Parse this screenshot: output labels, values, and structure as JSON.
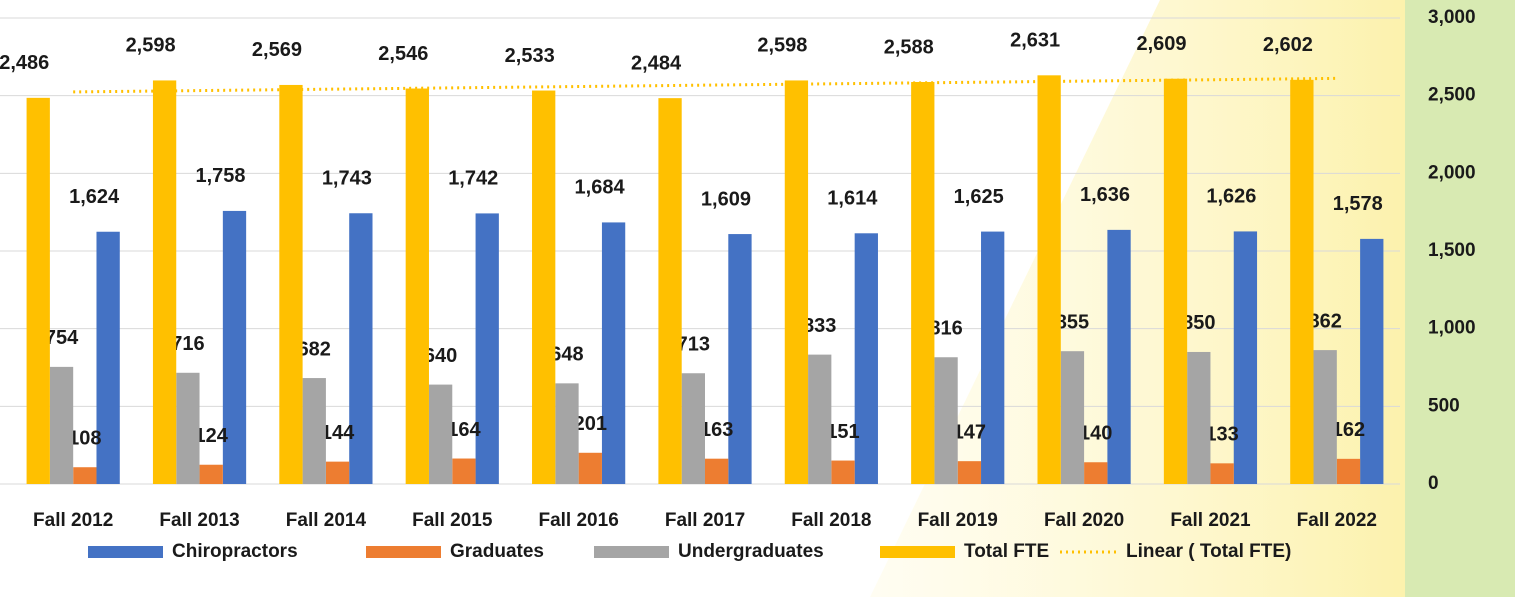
{
  "chart_data": {
    "type": "bar",
    "categories": [
      "Fall 2012",
      "Fall 2013",
      "Fall 2014",
      "Fall 2015",
      "Fall 2016",
      "Fall 2017",
      "Fall 2018",
      "Fall 2019",
      "Fall 2020",
      "Fall 2021",
      "Fall 2022"
    ],
    "series": [
      {
        "name": "Chiropractors",
        "color": "#4472c4",
        "values": [
          1624,
          1758,
          1743,
          1742,
          1684,
          1609,
          1614,
          1625,
          1636,
          1626,
          1578
        ],
        "value_labels": [
          "1,624",
          "1,758",
          "1,743",
          "1,742",
          "1,684",
          "1,609",
          "1,614",
          "1,625",
          "1,636",
          "1,626",
          "1,578"
        ]
      },
      {
        "name": "Graduates",
        "color": "#ed7d31",
        "values": [
          108,
          124,
          144,
          164,
          201,
          163,
          151,
          147,
          140,
          133,
          162
        ]
      },
      {
        "name": "Undergraduates",
        "color": "#a5a5a5",
        "values": [
          754,
          716,
          682,
          640,
          648,
          713,
          833,
          816,
          855,
          850,
          862
        ]
      },
      {
        "name": "Total FTE",
        "color": "#ffc000",
        "values": [
          2486,
          2598,
          2569,
          2546,
          2533,
          2484,
          2598,
          2588,
          2631,
          2609,
          2602
        ],
        "value_labels": [
          "2,486",
          "2,598",
          "2,569",
          "2,546",
          "2,533",
          "2,484",
          "2,598",
          "2,588",
          "2,631",
          "2,609",
          "2,602"
        ],
        "trendline": {
          "type": "linear",
          "name": "Linear ( Total FTE)"
        }
      }
    ],
    "ylim": [
      0,
      3000
    ],
    "yticks": [
      0,
      500,
      {
        "value": 1000,
        "label": "1,000"
      },
      {
        "value": 1500,
        "label": "1,500"
      },
      {
        "value": 2000,
        "label": "2,000"
      },
      {
        "value": 2500,
        "label": "2,500"
      },
      {
        "value": 3000,
        "label": "3,000"
      }
    ],
    "grid": true,
    "axis_side": "right",
    "legend": "bottom"
  }
}
